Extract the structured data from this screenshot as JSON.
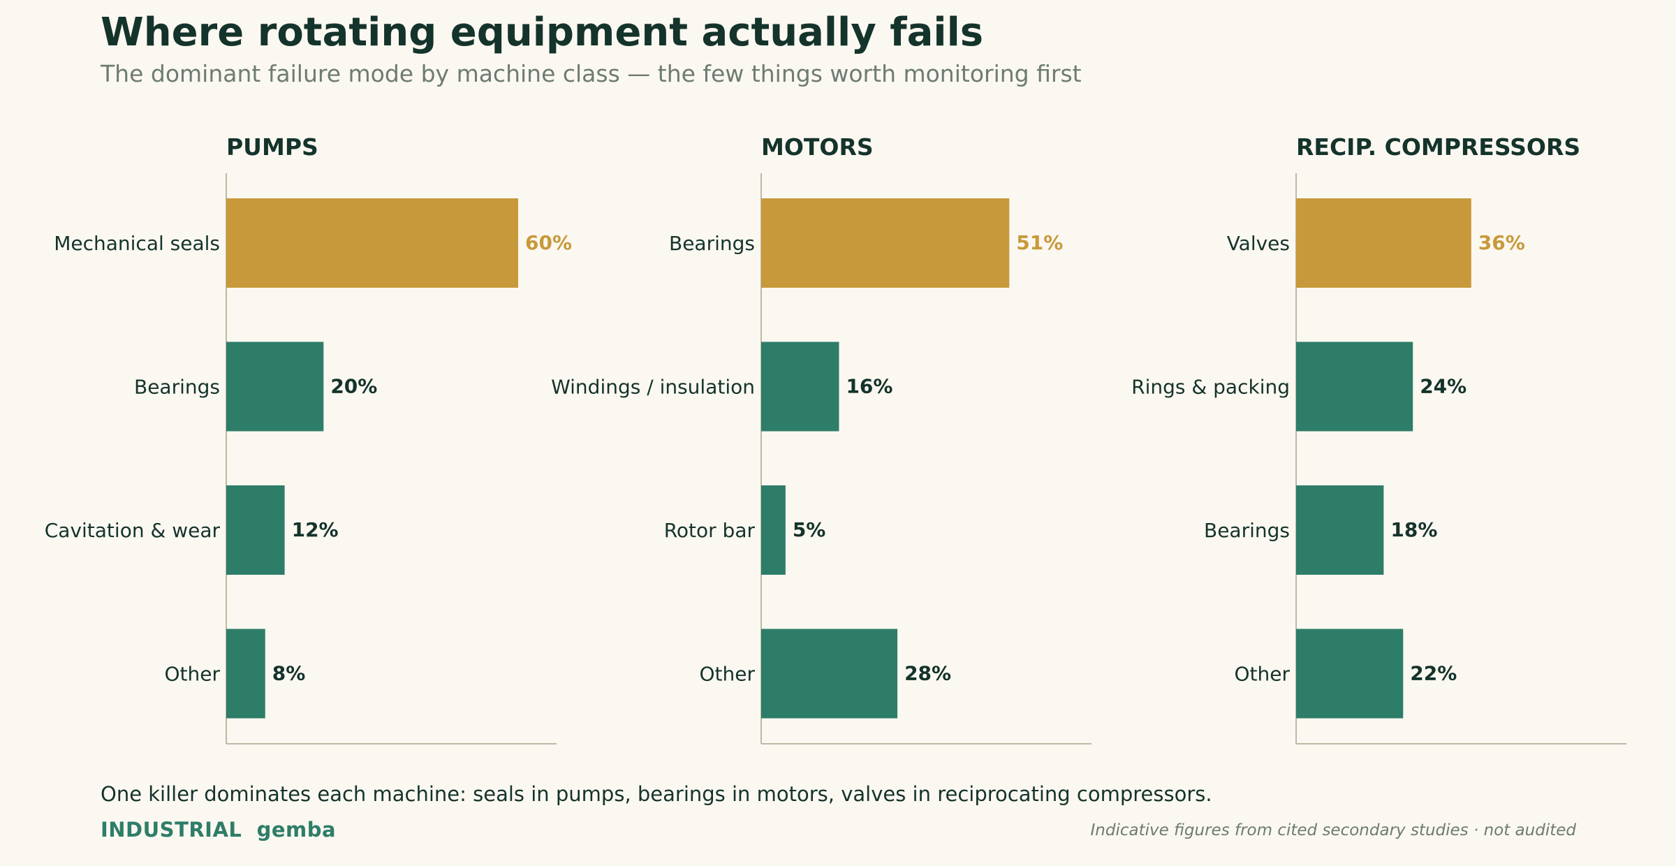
{
  "title": "Where rotating equipment actually fails",
  "subtitle": "The dominant failure mode by machine class — the few things worth monitoring first",
  "takeaway": "One killer dominates each machine: seals in pumps, bearings in motors, valves in reciprocating compressors.",
  "brand": "INDUSTRIAL  gemba",
  "footnote": "Indicative figures from cited secondary studies · not audited",
  "colors": {
    "highlight": "#C8993B",
    "bar": "#2E7D68",
    "axis": "#BDB9A6",
    "text": "#14332B"
  },
  "chart_data": [
    {
      "type": "bar",
      "orientation": "horizontal",
      "title": "PUMPS",
      "categories": [
        "Mechanical seals",
        "Bearings",
        "Cavitation & wear",
        "Other"
      ],
      "values": [
        60,
        20,
        12,
        8
      ],
      "labels": [
        "60%",
        "20%",
        "12%",
        "8%"
      ],
      "highlight_index": 0,
      "xlim": [
        0,
        68
      ]
    },
    {
      "type": "bar",
      "orientation": "horizontal",
      "title": "MOTORS",
      "categories": [
        "Bearings",
        "Windings / insulation",
        "Rotor bar",
        "Other"
      ],
      "values": [
        51,
        16,
        5,
        28
      ],
      "labels": [
        "51%",
        "16%",
        "5%",
        "28%"
      ],
      "highlight_index": 0,
      "xlim": [
        0,
        68
      ]
    },
    {
      "type": "bar",
      "orientation": "horizontal",
      "title": "RECIP. COMPRESSORS",
      "categories": [
        "Valves",
        "Rings & packing",
        "Bearings",
        "Other"
      ],
      "values": [
        36,
        24,
        18,
        22
      ],
      "labels": [
        "36%",
        "24%",
        "18%",
        "22%"
      ],
      "highlight_index": 0,
      "xlim": [
        0,
        68
      ]
    }
  ]
}
